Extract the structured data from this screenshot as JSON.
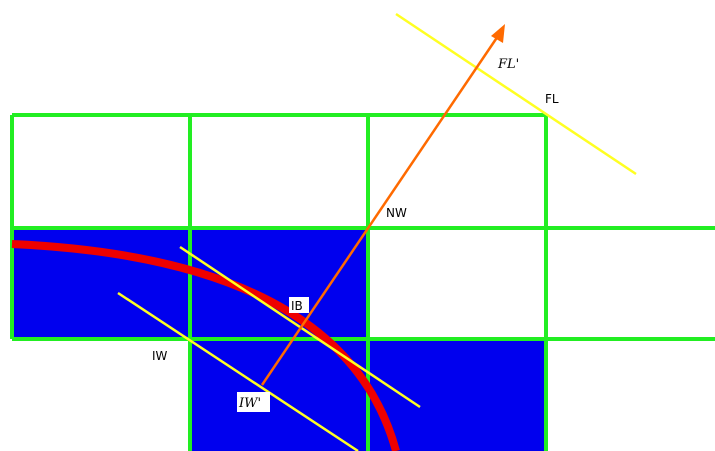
{
  "labels": {
    "fl": "FL",
    "fl_prime": "FL'",
    "nw": "NW",
    "ib": "IB",
    "iw": "IW",
    "iw_prime": "IW'"
  },
  "colors": {
    "grid": "#22ee22",
    "cell_fill": "#0000ee",
    "interface_curve": "#ee0000",
    "normal_arrow": "#ff6a00",
    "front_lines": "#ffff22",
    "background": "#ffffff"
  }
}
